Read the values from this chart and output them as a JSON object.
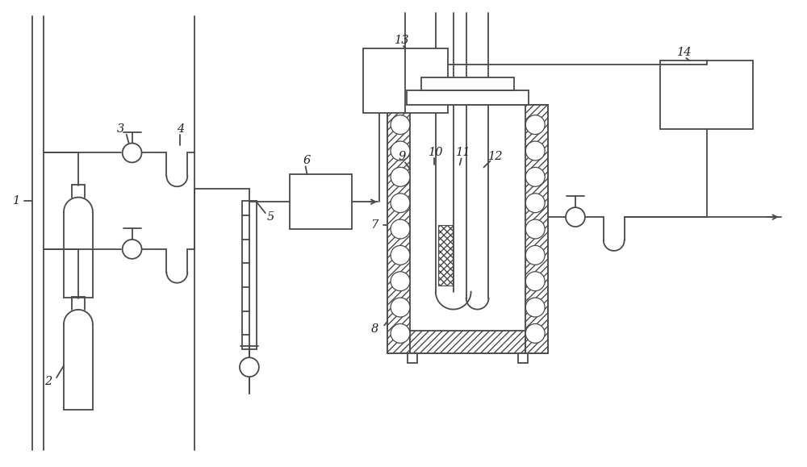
{
  "bg_color": "#ffffff",
  "line_color": "#4a4a4a",
  "label_color": "#222222",
  "fig_width": 10.0,
  "fig_height": 5.79
}
